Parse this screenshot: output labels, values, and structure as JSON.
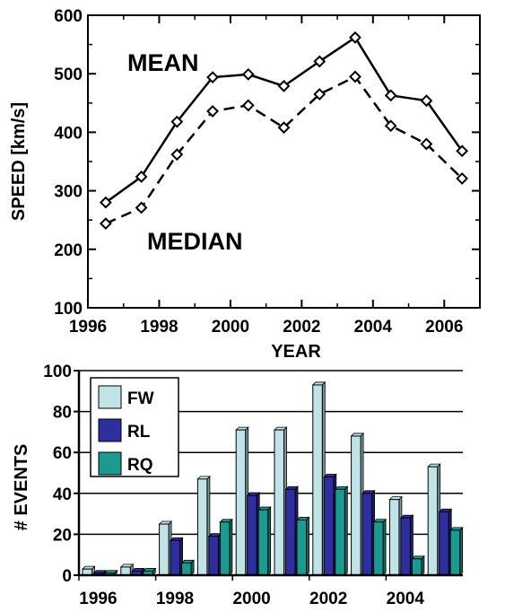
{
  "chart_data": [
    {
      "type": "line",
      "xlabel": "YEAR",
      "ylabel": "SPEED [km/s]",
      "xlim": [
        1996,
        2007
      ],
      "ylim": [
        100,
        600
      ],
      "xticks": [
        "1996",
        "1998",
        "2000",
        "2002",
        "2004",
        "2006"
      ],
      "yticks": [
        "100",
        "200",
        "300",
        "400",
        "500",
        "600"
      ],
      "x": [
        1996.5,
        1997.5,
        1998.5,
        1999.5,
        2000.5,
        2001.5,
        2002.5,
        2003.5,
        2004.5,
        2005.5,
        2006.5
      ],
      "series": [
        {
          "name": "MEAN",
          "line": "solid",
          "values": [
            280,
            324,
            418,
            494,
            499,
            479,
            521,
            562,
            463,
            454,
            368
          ]
        },
        {
          "name": "MEDIAN",
          "line": "dashed",
          "values": [
            244,
            271,
            362,
            436,
            446,
            408,
            465,
            495,
            411,
            380,
            321
          ]
        }
      ],
      "marker": "diamond",
      "grid": false
    },
    {
      "type": "bar",
      "ylabel": "# EVENTS",
      "ylim": [
        0,
        100
      ],
      "yticks": [
        "0",
        "20",
        "40",
        "60",
        "80",
        "100"
      ],
      "xticks": [
        "1996",
        "1998",
        "2000",
        "2002",
        "2004"
      ],
      "categories": [
        "1996",
        "1997",
        "1998",
        "1999",
        "2000",
        "2001",
        "2002",
        "2003",
        "2004",
        "2005"
      ],
      "series": [
        {
          "name": "FW",
          "color": "#bfe3e6",
          "values": [
            3,
            4,
            25,
            47,
            71,
            71,
            93,
            68,
            37,
            53
          ]
        },
        {
          "name": "RL",
          "color": "#2e2e9e",
          "values": [
            1,
            2,
            17,
            19,
            39,
            42,
            48,
            40,
            28,
            31
          ]
        },
        {
          "name": "RQ",
          "color": "#1b9a92",
          "values": [
            1,
            2,
            6,
            26,
            32,
            27,
            42,
            26,
            8,
            22
          ]
        }
      ],
      "legend": "top-left",
      "grid": true
    }
  ]
}
